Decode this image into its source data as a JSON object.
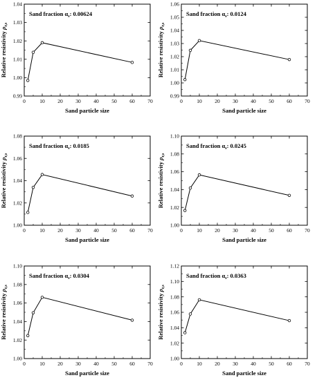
{
  "chart_data": [
    {
      "type": "line",
      "annotation": {
        "prefix": "Sand fraction α",
        "subscript": "s",
        "value": ": 0.00624"
      },
      "xlabel": "Sand particle size",
      "ylabel": "Relative resistivity",
      "ylabel_symbol": "ρ",
      "ylabel_subscript": "r,s",
      "xlim": [
        0,
        70
      ],
      "ylim": [
        0.99,
        1.04
      ],
      "xticks": [
        "0",
        "10",
        "20",
        "30",
        "40",
        "50",
        "60",
        "70"
      ],
      "yticks": [
        "0.99",
        "1.00",
        "1.01",
        "1.02",
        "1.03",
        "1.04"
      ],
      "x": [
        2,
        5,
        10,
        60
      ],
      "y": [
        0.9985,
        1.0138,
        1.019,
        1.0083
      ]
    },
    {
      "type": "line",
      "annotation": {
        "prefix": "Sand fraction α",
        "subscript": "s",
        "value": ": 0.0124"
      },
      "xlabel": "Sand particle size",
      "ylabel": "Relative resistivity",
      "ylabel_symbol": "ρ",
      "ylabel_subscript": "r,s",
      "xlim": [
        0,
        70
      ],
      "ylim": [
        0.99,
        1.06
      ],
      "xticks": [
        "0",
        "10",
        "20",
        "30",
        "40",
        "50",
        "60",
        "70"
      ],
      "yticks": [
        "0.99",
        "1.00",
        "1.01",
        "1.02",
        "1.03",
        "1.04",
        "1.05",
        "1.06"
      ],
      "x": [
        2,
        5,
        10,
        60
      ],
      "y": [
        1.0025,
        1.0248,
        1.0322,
        1.0178
      ]
    },
    {
      "type": "line",
      "annotation": {
        "prefix": "Sand fraction α",
        "subscript": "s",
        "value": ": 0.0185"
      },
      "xlabel": "Sand particle size",
      "ylabel": "Relative resistivity",
      "ylabel_symbol": "ρ",
      "ylabel_subscript": "r,s",
      "xlim": [
        0,
        70
      ],
      "ylim": [
        1.0,
        1.08
      ],
      "xticks": [
        "0",
        "10",
        "20",
        "30",
        "40",
        "50",
        "60",
        "70"
      ],
      "yticks": [
        "1.00",
        "1.02",
        "1.04",
        "1.06",
        "1.08"
      ],
      "x": [
        2,
        5,
        10,
        60
      ],
      "y": [
        1.0115,
        1.034,
        1.0455,
        1.0262
      ]
    },
    {
      "type": "line",
      "annotation": {
        "prefix": "Sand fraction α",
        "subscript": "s",
        "value": ": 0.0245"
      },
      "xlabel": "Sand particle size",
      "ylabel": "Relative resistivity",
      "ylabel_symbol": "ρ",
      "ylabel_subscript": "r,s",
      "xlim": [
        0,
        70
      ],
      "ylim": [
        1.0,
        1.1
      ],
      "xticks": [
        "0",
        "10",
        "20",
        "30",
        "40",
        "50",
        "60",
        "70"
      ],
      "yticks": [
        "1.00",
        "1.02",
        "1.04",
        "1.06",
        "1.08",
        "1.10"
      ],
      "x": [
        2,
        5,
        10,
        60
      ],
      "y": [
        1.0165,
        1.0418,
        1.0565,
        1.0335
      ]
    },
    {
      "type": "line",
      "annotation": {
        "prefix": "Sand fraction α",
        "subscript": "s",
        "value": ": 0.0304"
      },
      "xlabel": "Sand particle size",
      "ylabel": "Relative resistivity",
      "ylabel_symbol": "ρ",
      "ylabel_subscript": "r,s",
      "xlim": [
        0,
        70
      ],
      "ylim": [
        1.0,
        1.1
      ],
      "xticks": [
        "0",
        "10",
        "20",
        "30",
        "40",
        "50",
        "60",
        "70"
      ],
      "yticks": [
        "1.00",
        "1.02",
        "1.04",
        "1.06",
        "1.08",
        "1.10"
      ],
      "x": [
        2,
        5,
        10,
        60
      ],
      "y": [
        1.0248,
        1.0495,
        1.0662,
        1.0415
      ]
    },
    {
      "type": "line",
      "annotation": {
        "prefix": "Sand fraction α",
        "subscript": "s",
        "value": ": 0.0363"
      },
      "xlabel": "Sand particle size",
      "ylabel": "Relative resistivity",
      "ylabel_symbol": "ρ",
      "ylabel_subscript": "r,s",
      "xlim": [
        0,
        70
      ],
      "ylim": [
        1.0,
        1.12
      ],
      "xticks": [
        "0",
        "10",
        "20",
        "30",
        "40",
        "50",
        "60",
        "70"
      ],
      "yticks": [
        "1.00",
        "1.02",
        "1.04",
        "1.06",
        "1.08",
        "1.10",
        "1.12"
      ],
      "x": [
        2,
        5,
        10,
        60
      ],
      "y": [
        1.0335,
        1.0578,
        1.0762,
        1.0492
      ]
    }
  ]
}
